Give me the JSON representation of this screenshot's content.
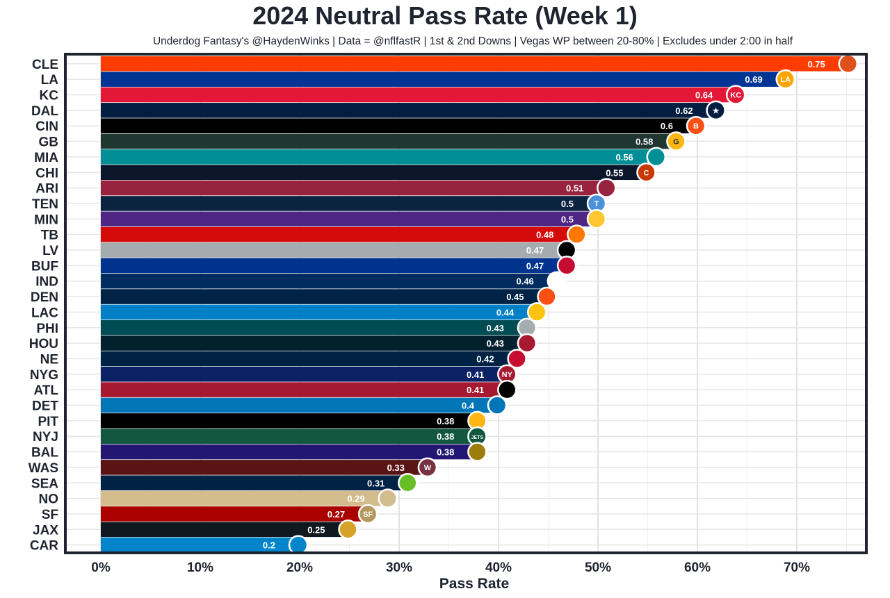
{
  "chart_data": {
    "type": "bar",
    "orientation": "horizontal",
    "title": "2024 Neutral Pass Rate (Week 1)",
    "subtitle": "Underdog Fantasy's @HaydenWinks | Data = @nflfastR | 1st & 2nd Downs | Vegas WP between 20-80% | Excludes under 2:00 in half",
    "xlabel": "Pass Rate",
    "ylabel": "",
    "xlim": [
      0,
      0.78
    ],
    "x_ticks": [
      0,
      0.1,
      0.2,
      0.3,
      0.4,
      0.5,
      0.6,
      0.7
    ],
    "x_tick_labels": [
      "0%",
      "10%",
      "20%",
      "30%",
      "40%",
      "50%",
      "60%",
      "70%"
    ],
    "grid": true,
    "legend": "none",
    "categories": [
      "CLE",
      "LA",
      "KC",
      "DAL",
      "CIN",
      "GB",
      "MIA",
      "CHI",
      "ARI",
      "TEN",
      "MIN",
      "TB",
      "LV",
      "BUF",
      "IND",
      "DEN",
      "LAC",
      "PHI",
      "HOU",
      "NE",
      "NYG",
      "ATL",
      "DET",
      "PIT",
      "NYJ",
      "BAL",
      "WAS",
      "SEA",
      "NO",
      "SF",
      "JAX",
      "CAR"
    ],
    "values": [
      0.753,
      0.69,
      0.64,
      0.62,
      0.6,
      0.58,
      0.56,
      0.55,
      0.51,
      0.5,
      0.5,
      0.48,
      0.47,
      0.47,
      0.46,
      0.45,
      0.44,
      0.43,
      0.43,
      0.42,
      0.41,
      0.41,
      0.4,
      0.38,
      0.38,
      0.38,
      0.33,
      0.31,
      0.29,
      0.27,
      0.25,
      0.2
    ],
    "value_labels": [
      "0.75",
      "0.69",
      "0.64",
      "0.62",
      "0.6",
      "0.58",
      "0.56",
      "0.55",
      "0.51",
      "0.5",
      "0.5",
      "0.48",
      "0.47",
      "0.47",
      "0.46",
      "0.45",
      "0.44",
      "0.43",
      "0.43",
      "0.42",
      "0.41",
      "0.41",
      "0.4",
      "0.38",
      "0.38",
      "0.38",
      "0.33",
      "0.31",
      "0.29",
      "0.27",
      "0.25",
      "0.2"
    ],
    "bar_colors": [
      "#FF3C00",
      "#003594",
      "#E31837",
      "#041E42",
      "#000000",
      "#203731",
      "#008E97",
      "#0B162A",
      "#97233F",
      "#0C2340",
      "#4F2683",
      "#D50A0A",
      "#A5ACAF",
      "#00338D",
      "#002C5F",
      "#002244",
      "#0080C6",
      "#004C54",
      "#03202F",
      "#002244",
      "#0B2265",
      "#A71930",
      "#0076B6",
      "#000000",
      "#125740",
      "#241773",
      "#5A1414",
      "#002244",
      "#D3BC8D",
      "#AA0000",
      "#101820",
      "#0085CA"
    ],
    "logo_colors": [
      "#E0501A",
      "#FFA300",
      "#E31837",
      "#041E42",
      "#FB4F14",
      "#FFB612",
      "#008E97",
      "#C83803",
      "#97233F",
      "#4B92DB",
      "#FFC62F",
      "#FF7900",
      "#000000",
      "#C60C30",
      "#FFFFFF",
      "#FB4F14",
      "#FFC20E",
      "#A5ACAF",
      "#A71930",
      "#C60C30",
      "#A71930",
      "#000000",
      "#0076B6",
      "#FFB612",
      "#125740",
      "#9E7C0C",
      "#773141",
      "#69BE28",
      "#D3BC8D",
      "#B3995D",
      "#D7A22A",
      "#0085CA"
    ],
    "logo_badges": [
      "",
      "LA",
      "KC",
      "★",
      "B",
      "G",
      "",
      "C",
      "",
      "T",
      "",
      "",
      "",
      "",
      "",
      "",
      "",
      "",
      "",
      "",
      "NY",
      "",
      "",
      "",
      "JETS",
      "",
      "W",
      "",
      "",
      "SF",
      "",
      ""
    ]
  }
}
